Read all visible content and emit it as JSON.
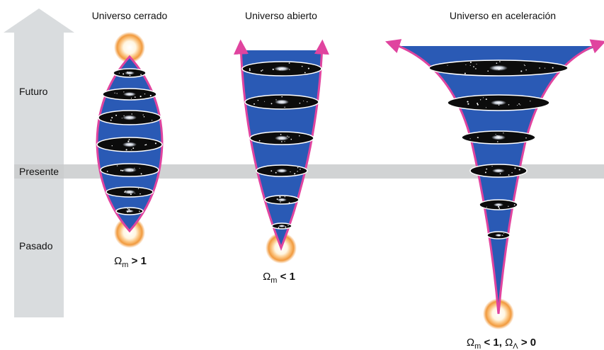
{
  "diagram": {
    "time_axis": {
      "labels": {
        "future": "Futuro",
        "present": "Presente",
        "past": "Pasado"
      }
    },
    "models": [
      {
        "id": "closed",
        "title": "Universo cerrado",
        "formula": {
          "omega": "Ω",
          "m_sub": "m",
          "relation": " > 1",
          "omega2": "",
          "lambda_sub": "",
          "relation2": ""
        }
      },
      {
        "id": "open",
        "title": "Universo abierto",
        "formula": {
          "omega": "Ω",
          "m_sub": "m",
          "relation": " < 1",
          "omega2": "",
          "lambda_sub": "",
          "relation2": ""
        }
      },
      {
        "id": "accelerating",
        "title": "Universo en aceleración",
        "formula": {
          "omega": "Ω",
          "m_sub": "m",
          "relation": " < 1, ",
          "omega2": "Ω",
          "lambda_sub": "Λ",
          "relation2": " > 0"
        }
      }
    ],
    "colors": {
      "arrow": "#d9dcde",
      "present_band": "#c9cbcc",
      "universe_fill": "#2a5ab5",
      "outline": "#e0449f",
      "galaxy_disc": "#0c0c0c",
      "big_bang_core": "#ffffff",
      "big_bang_glow": "#f19a3e"
    }
  }
}
